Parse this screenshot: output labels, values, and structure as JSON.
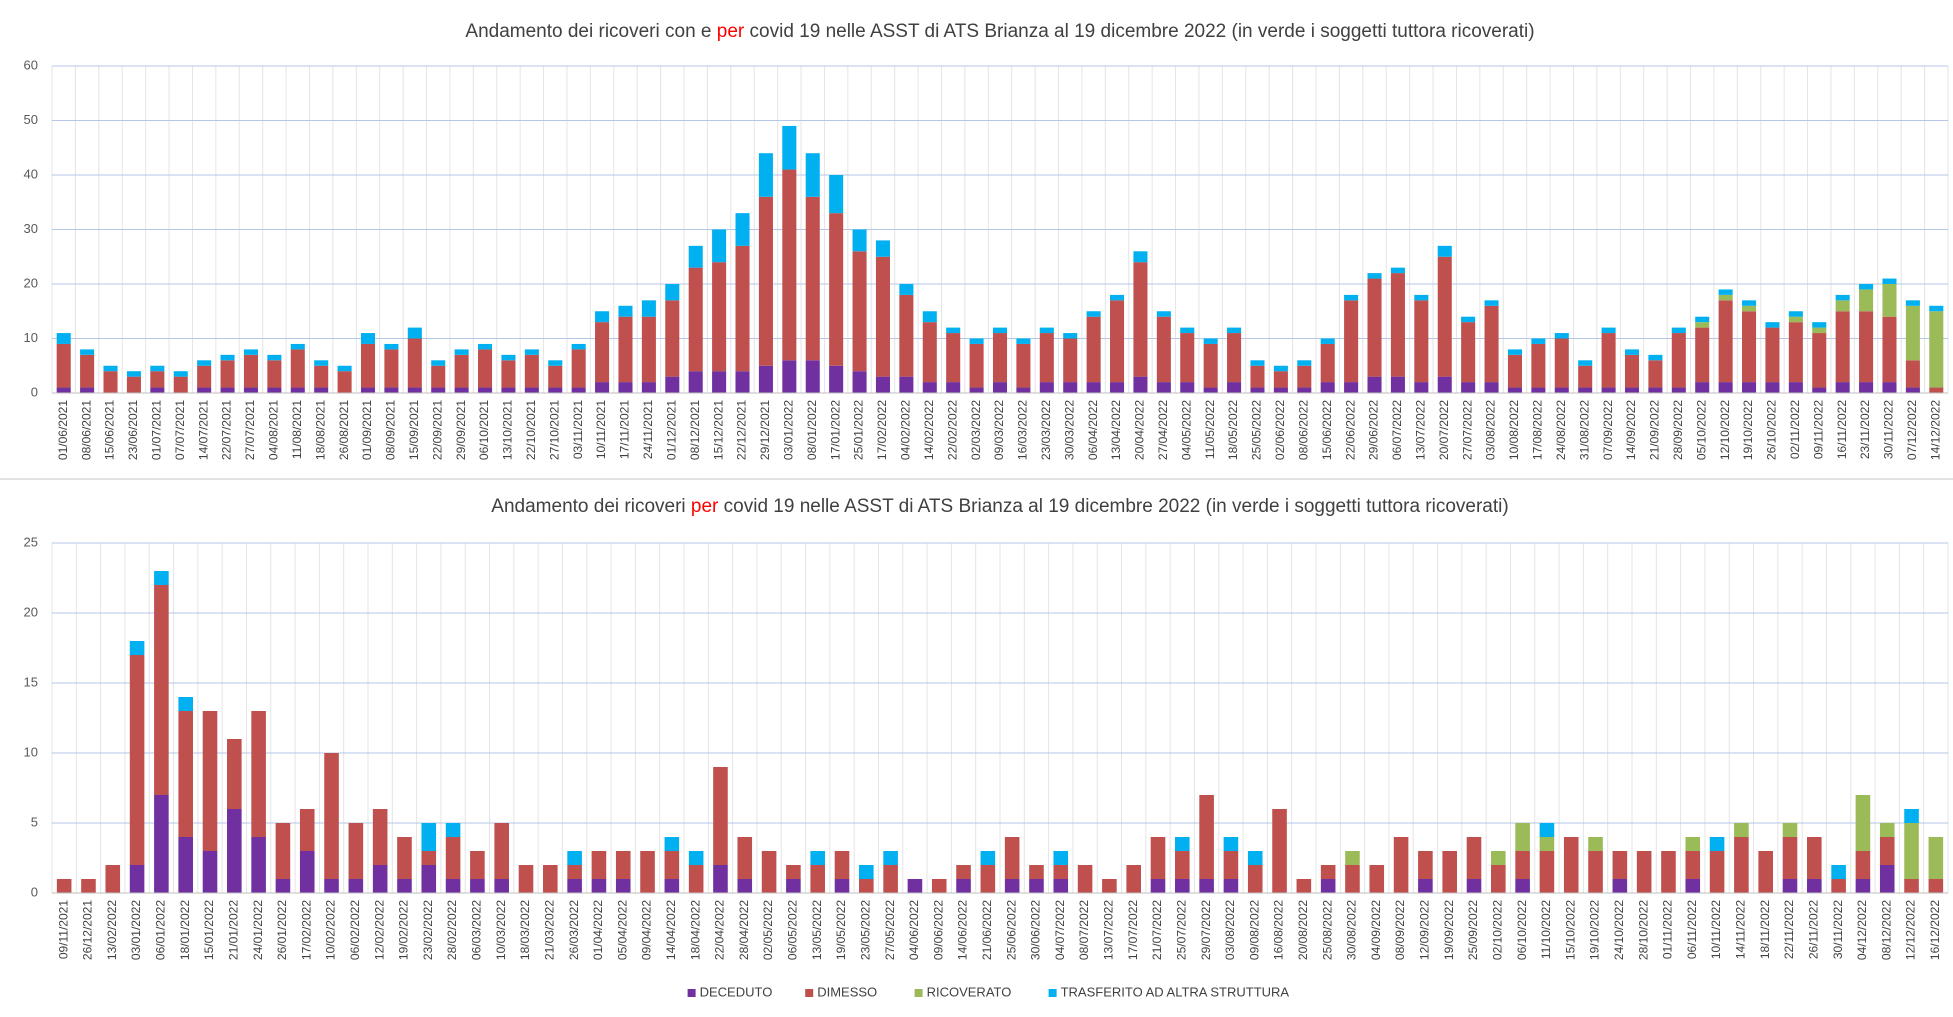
{
  "chart_data": [
    {
      "type": "bar",
      "stacked": true,
      "title": [
        "Andamento dei ricoveri con e ",
        "per",
        " covid 19 nelle ASST di ATS Brianza al 19 dicembre 2022 (in verde i soggetti tuttora ricoverati)"
      ],
      "title_colors": [
        "#404040",
        "#ff0000",
        "#404040"
      ],
      "categories": [
        "01/06/2021",
        "08/06/2021",
        "15/06/2021",
        "23/06/2021",
        "01/07/2021",
        "07/07/2021",
        "14/07/2021",
        "22/07/2021",
        "27/07/2021",
        "04/08/2021",
        "11/08/2021",
        "18/08/2021",
        "26/08/2021",
        "01/09/2021",
        "08/09/2021",
        "15/09/2021",
        "22/09/2021",
        "29/09/2021",
        "06/10/2021",
        "13/10/2021",
        "22/10/2021",
        "27/10/2021",
        "03/11/2021",
        "10/11/2021",
        "17/11/2021",
        "24/11/2021",
        "01/12/2021",
        "08/12/2021",
        "15/12/2021",
        "22/12/2021",
        "29/12/2021",
        "03/01/2022",
        "08/01/2022",
        "17/01/2022",
        "25/01/2022",
        "17/02/2022",
        "04/02/2022",
        "14/02/2022",
        "22/02/2022",
        "02/03/2022",
        "09/03/2022",
        "16/03/2022",
        "23/03/2022",
        "30/03/2022",
        "06/04/2022",
        "13/04/2022",
        "20/04/2022",
        "27/04/2022",
        "04/05/2022",
        "11/05/2022",
        "18/05/2022",
        "25/05/2022",
        "02/06/2022",
        "08/06/2022",
        "15/06/2022",
        "22/06/2022",
        "29/06/2022",
        "06/07/2022",
        "13/07/2022",
        "20/07/2022",
        "27/07/2022",
        "03/08/2022",
        "10/08/2022",
        "17/08/2022",
        "24/08/2022",
        "31/08/2022",
        "07/09/2022",
        "14/09/2022",
        "21/09/2022",
        "28/09/2022",
        "05/10/2022",
        "12/10/2022",
        "19/10/2022",
        "26/10/2022",
        "02/11/2022",
        "09/11/2022",
        "16/11/2022",
        "23/11/2022",
        "30/11/2022",
        "07/12/2022",
        "14/12/2022"
      ],
      "series": [
        {
          "color": "#7030a0",
          "values": [
            1,
            1,
            0,
            0,
            1,
            0,
            1,
            1,
            1,
            1,
            1,
            1,
            0,
            1,
            1,
            1,
            1,
            1,
            1,
            1,
            1,
            1,
            1,
            2,
            2,
            2,
            3,
            4,
            4,
            4,
            5,
            6,
            6,
            5,
            4,
            3,
            3,
            2,
            2,
            1,
            2,
            1,
            2,
            2,
            2,
            2,
            3,
            2,
            2,
            1,
            2,
            1,
            1,
            1,
            2,
            2,
            3,
            3,
            2,
            3,
            2,
            2,
            1,
            1,
            1,
            1,
            1,
            1,
            1,
            1,
            2,
            2,
            2,
            2,
            2,
            1,
            2,
            2,
            2,
            1,
            0
          ]
        },
        {
          "color": "#c0504d",
          "values": [
            8,
            6,
            4,
            3,
            3,
            3,
            4,
            5,
            6,
            5,
            7,
            4,
            4,
            8,
            7,
            9,
            4,
            6,
            7,
            5,
            6,
            4,
            7,
            11,
            12,
            12,
            14,
            19,
            20,
            23,
            31,
            35,
            30,
            28,
            22,
            22,
            15,
            11,
            9,
            8,
            9,
            8,
            9,
            8,
            12,
            15,
            21,
            12,
            9,
            8,
            9,
            4,
            3,
            4,
            7,
            15,
            18,
            19,
            15,
            22,
            11,
            14,
            6,
            8,
            9,
            4,
            10,
            6,
            5,
            10,
            10,
            15,
            13,
            10,
            11,
            10,
            13,
            13,
            12,
            5,
            1
          ]
        },
        {
          "color": "#9bbb59",
          "values": [
            0,
            0,
            0,
            0,
            0,
            0,
            0,
            0,
            0,
            0,
            0,
            0,
            0,
            0,
            0,
            0,
            0,
            0,
            0,
            0,
            0,
            0,
            0,
            0,
            0,
            0,
            0,
            0,
            0,
            0,
            0,
            0,
            0,
            0,
            0,
            0,
            0,
            0,
            0,
            0,
            0,
            0,
            0,
            0,
            0,
            0,
            0,
            0,
            0,
            0,
            0,
            0,
            0,
            0,
            0,
            0,
            0,
            0,
            0,
            0,
            0,
            0,
            0,
            0,
            0,
            0,
            0,
            0,
            0,
            0,
            1,
            1,
            1,
            0,
            1,
            1,
            2,
            4,
            6,
            10,
            14
          ]
        },
        {
          "color": "#00b0f0",
          "values": [
            2,
            1,
            1,
            1,
            1,
            1,
            1,
            1,
            1,
            1,
            1,
            1,
            1,
            2,
            1,
            2,
            1,
            1,
            1,
            1,
            1,
            1,
            1,
            2,
            2,
            3,
            3,
            4,
            6,
            6,
            8,
            8,
            8,
            7,
            4,
            3,
            2,
            2,
            1,
            1,
            1,
            1,
            1,
            1,
            1,
            1,
            2,
            1,
            1,
            1,
            1,
            1,
            1,
            1,
            1,
            1,
            1,
            1,
            1,
            2,
            1,
            1,
            1,
            1,
            1,
            1,
            1,
            1,
            1,
            1,
            1,
            1,
            1,
            1,
            1,
            1,
            1,
            1,
            1,
            1,
            1
          ]
        }
      ],
      "ylim": [
        0,
        60
      ],
      "yticks": [
        0,
        10,
        20,
        30,
        40,
        50,
        60
      ],
      "grid": true,
      "grid_color": "#b4c7e7"
    },
    {
      "type": "bar",
      "stacked": true,
      "title": [
        "Andamento dei ricoveri ",
        "per",
        " covid 19 nelle ASST di ATS Brianza al 19 dicembre 2022 (in verde i soggetti tuttora ricoverati)"
      ],
      "title_colors": [
        "#404040",
        "#ff0000",
        "#404040"
      ],
      "categories": [
        "09/11/2021",
        "26/12/2021",
        "13/02/2022",
        "03/01/2022",
        "06/01/2022",
        "18/01/2022",
        "15/01/2022",
        "21/01/2022",
        "24/01/2022",
        "26/01/2022",
        "17/02/2022",
        "10/02/2022",
        "06/02/2022",
        "12/02/2022",
        "19/02/2022",
        "23/02/2022",
        "28/02/2022",
        "06/03/2022",
        "10/03/2022",
        "18/03/2022",
        "21/03/2022",
        "26/03/2022",
        "01/04/2022",
        "05/04/2022",
        "09/04/2022",
        "14/04/2022",
        "18/04/2022",
        "22/04/2022",
        "28/04/2022",
        "02/05/2022",
        "06/05/2022",
        "13/05/2022",
        "19/05/2022",
        "23/05/2022",
        "27/05/2022",
        "04/06/2022",
        "09/06/2022",
        "14/06/2022",
        "21/06/2022",
        "25/06/2022",
        "30/06/2022",
        "04/07/2022",
        "08/07/2022",
        "13/07/2022",
        "17/07/2022",
        "21/07/2022",
        "25/07/2022",
        "29/07/2022",
        "03/08/2022",
        "09/08/2022",
        "16/08/2022",
        "20/08/2022",
        "25/08/2022",
        "30/08/2022",
        "04/09/2022",
        "08/09/2022",
        "12/09/2022",
        "19/09/2022",
        "25/09/2022",
        "02/10/2022",
        "06/10/2022",
        "11/10/2022",
        "15/10/2022",
        "19/10/2022",
        "24/10/2022",
        "28/10/2022",
        "01/11/2022",
        "06/11/2022",
        "10/11/2022",
        "14/11/2022",
        "18/11/2022",
        "22/11/2022",
        "26/11/2022",
        "30/11/2022",
        "04/12/2022",
        "08/12/2022",
        "12/12/2022",
        "16/12/2022"
      ],
      "series": [
        {
          "name": "DECEDUTO",
          "color": "#7030a0",
          "values": [
            0,
            0,
            0,
            2,
            7,
            4,
            3,
            6,
            4,
            1,
            3,
            1,
            1,
            2,
            1,
            2,
            1,
            1,
            1,
            0,
            0,
            1,
            1,
            1,
            0,
            1,
            0,
            2,
            1,
            0,
            1,
            0,
            1,
            0,
            0,
            1,
            0,
            1,
            0,
            1,
            1,
            1,
            0,
            0,
            0,
            1,
            1,
            1,
            1,
            0,
            0,
            0,
            1,
            0,
            0,
            0,
            1,
            0,
            1,
            0,
            1,
            0,
            0,
            0,
            1,
            0,
            0,
            1,
            0,
            0,
            0,
            1,
            1,
            0,
            1,
            2,
            0,
            0
          ]
        },
        {
          "name": "DIMESSO",
          "color": "#c0504d",
          "values": [
            1,
            1,
            2,
            15,
            15,
            9,
            10,
            5,
            9,
            4,
            3,
            9,
            4,
            4,
            3,
            1,
            3,
            2,
            4,
            2,
            2,
            1,
            2,
            2,
            3,
            2,
            2,
            7,
            3,
            3,
            1,
            2,
            2,
            1,
            2,
            0,
            1,
            1,
            2,
            3,
            1,
            1,
            2,
            1,
            2,
            3,
            2,
            6,
            2,
            2,
            6,
            1,
            1,
            2,
            2,
            4,
            2,
            3,
            3,
            2,
            2,
            3,
            4,
            3,
            2,
            3,
            3,
            2,
            3,
            4,
            3,
            3,
            3,
            1,
            2,
            2,
            1,
            1
          ]
        },
        {
          "name": "RICOVERATO",
          "color": "#9bbb59",
          "values": [
            0,
            0,
            0,
            0,
            0,
            0,
            0,
            0,
            0,
            0,
            0,
            0,
            0,
            0,
            0,
            0,
            0,
            0,
            0,
            0,
            0,
            0,
            0,
            0,
            0,
            0,
            0,
            0,
            0,
            0,
            0,
            0,
            0,
            0,
            0,
            0,
            0,
            0,
            0,
            0,
            0,
            0,
            0,
            0,
            0,
            0,
            0,
            0,
            0,
            0,
            0,
            0,
            0,
            1,
            0,
            0,
            0,
            0,
            0,
            1,
            2,
            1,
            0,
            1,
            0,
            0,
            0,
            1,
            0,
            1,
            0,
            1,
            0,
            0,
            4,
            1,
            4,
            3
          ]
        },
        {
          "name": "TRASFERITO AD ALTRA STRUTTURA",
          "color": "#00b0f0",
          "values": [
            0,
            0,
            0,
            1,
            1,
            1,
            0,
            0,
            0,
            0,
            0,
            0,
            0,
            0,
            0,
            2,
            1,
            0,
            0,
            0,
            0,
            1,
            0,
            0,
            0,
            1,
            1,
            0,
            0,
            0,
            0,
            1,
            0,
            1,
            1,
            0,
            0,
            0,
            1,
            0,
            0,
            1,
            0,
            0,
            0,
            0,
            1,
            0,
            1,
            1,
            0,
            0,
            0,
            0,
            0,
            0,
            0,
            0,
            0,
            0,
            0,
            1,
            0,
            0,
            0,
            0,
            0,
            0,
            1,
            0,
            0,
            0,
            0,
            1,
            0,
            0,
            1,
            0
          ]
        }
      ],
      "ylim": [
        0,
        25
      ],
      "yticks": [
        0,
        5,
        10,
        15,
        20,
        25
      ],
      "grid": true,
      "grid_color": "#b4c7e7",
      "legend": "bottom"
    }
  ]
}
